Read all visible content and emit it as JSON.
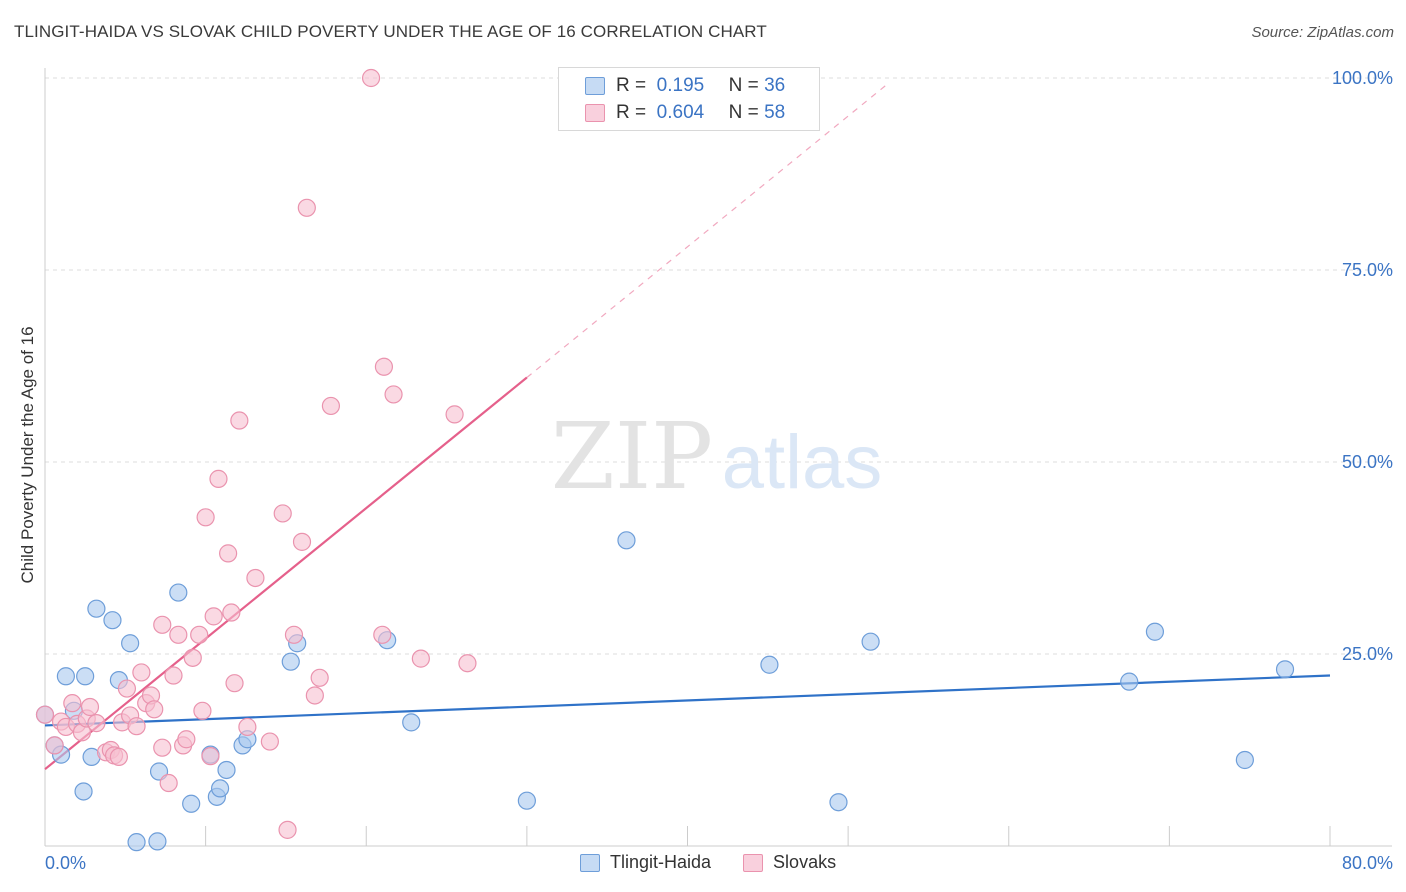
{
  "header": {
    "title": "TLINGIT-HAIDA VS SLOVAK CHILD POVERTY UNDER THE AGE OF 16 CORRELATION CHART",
    "source": "Source: ZipAtlas.com"
  },
  "watermark": {
    "zip": "ZIP",
    "atlas": "atlas"
  },
  "legend": {
    "r_label": "R =",
    "n_label": "N =",
    "series": [
      {
        "name": "Tlingit-Haida",
        "r": "0.195",
        "n": "36"
      },
      {
        "name": "Slovaks",
        "r": "0.604",
        "n": "58"
      }
    ]
  },
  "colors": {
    "blue_fill": "#a9c8ef",
    "blue_stroke": "#6e9ed9",
    "blue_line": "#2f72c8",
    "pink_fill": "#f7bfd0",
    "pink_stroke": "#ea93ae",
    "pink_line": "#e5608b",
    "axis_text": "#3b74c4",
    "grid": "#dcdcdc"
  },
  "chart_data": {
    "type": "scatter",
    "title": "TLINGIT-HAIDA VS SLOVAK CHILD POVERTY UNDER THE AGE OF 16 CORRELATION CHART",
    "xlabel": "",
    "ylabel": "Child Poverty Under the Age of 16",
    "xlim": [
      0,
      80
    ],
    "ylim": [
      0,
      100
    ],
    "x_tick_labels": [
      "0.0%",
      "80.0%"
    ],
    "y_ticks": [
      25,
      50,
      75,
      100
    ],
    "y_tick_labels": [
      "25.0%",
      "50.0%",
      "75.0%",
      "100.0%"
    ],
    "grid": true,
    "legend_position": "top-center",
    "series": [
      {
        "name": "Tlingit-Haida",
        "color": "#a9c8ef",
        "points": [
          [
            0.0,
            17.1
          ],
          [
            0.6,
            13.1
          ],
          [
            1.0,
            11.9
          ],
          [
            1.3,
            22.1
          ],
          [
            1.8,
            17.6
          ],
          [
            2.4,
            7.1
          ],
          [
            2.5,
            22.1
          ],
          [
            2.9,
            11.6
          ],
          [
            3.2,
            30.9
          ],
          [
            4.2,
            29.4
          ],
          [
            4.6,
            21.6
          ],
          [
            5.3,
            26.4
          ],
          [
            5.7,
            0.5
          ],
          [
            7.0,
            0.6
          ],
          [
            7.1,
            9.7
          ],
          [
            8.3,
            33.0
          ],
          [
            9.1,
            5.5
          ],
          [
            10.3,
            11.9
          ],
          [
            10.7,
            6.4
          ],
          [
            10.9,
            7.5
          ],
          [
            11.3,
            9.9
          ],
          [
            12.3,
            13.1
          ],
          [
            12.6,
            13.9
          ],
          [
            15.3,
            24.0
          ],
          [
            15.7,
            26.4
          ],
          [
            21.3,
            26.8
          ],
          [
            22.8,
            16.1
          ],
          [
            30.0,
            5.9
          ],
          [
            36.2,
            39.8
          ],
          [
            45.1,
            23.6
          ],
          [
            49.4,
            5.7
          ],
          [
            51.4,
            26.6
          ],
          [
            67.5,
            21.4
          ],
          [
            69.1,
            27.9
          ],
          [
            74.7,
            11.2
          ],
          [
            77.2,
            23.0
          ]
        ]
      },
      {
        "name": "Slovaks",
        "color": "#f7bfd0",
        "points": [
          [
            0.0,
            17.1
          ],
          [
            0.6,
            13.1
          ],
          [
            1.0,
            16.2
          ],
          [
            1.3,
            15.5
          ],
          [
            1.7,
            18.6
          ],
          [
            2.0,
            15.9
          ],
          [
            2.3,
            14.8
          ],
          [
            2.6,
            16.6
          ],
          [
            2.8,
            18.1
          ],
          [
            3.2,
            16.0
          ],
          [
            3.8,
            12.2
          ],
          [
            4.1,
            12.5
          ],
          [
            4.3,
            11.8
          ],
          [
            4.6,
            11.6
          ],
          [
            4.8,
            16.1
          ],
          [
            5.1,
            20.5
          ],
          [
            5.3,
            17.0
          ],
          [
            5.7,
            15.6
          ],
          [
            6.0,
            22.6
          ],
          [
            6.3,
            18.6
          ],
          [
            6.6,
            19.6
          ],
          [
            6.8,
            17.8
          ],
          [
            7.3,
            28.8
          ],
          [
            7.3,
            12.8
          ],
          [
            7.7,
            8.2
          ],
          [
            8.0,
            22.2
          ],
          [
            8.3,
            27.5
          ],
          [
            8.6,
            13.1
          ],
          [
            8.8,
            13.9
          ],
          [
            9.2,
            24.5
          ],
          [
            9.6,
            27.5
          ],
          [
            9.8,
            17.6
          ],
          [
            10.0,
            42.8
          ],
          [
            10.3,
            11.7
          ],
          [
            10.5,
            29.9
          ],
          [
            10.8,
            47.8
          ],
          [
            11.4,
            38.1
          ],
          [
            11.6,
            30.4
          ],
          [
            11.8,
            21.2
          ],
          [
            12.1,
            55.4
          ],
          [
            12.6,
            15.5
          ],
          [
            13.1,
            34.9
          ],
          [
            14.0,
            13.6
          ],
          [
            14.8,
            43.3
          ],
          [
            15.1,
            2.1
          ],
          [
            15.5,
            27.5
          ],
          [
            16.0,
            39.6
          ],
          [
            16.3,
            83.1
          ],
          [
            16.8,
            19.6
          ],
          [
            17.1,
            21.9
          ],
          [
            17.8,
            57.3
          ],
          [
            20.3,
            100.0
          ],
          [
            21.1,
            62.4
          ],
          [
            21.7,
            58.8
          ],
          [
            23.4,
            24.4
          ],
          [
            25.5,
            56.2
          ],
          [
            26.3,
            23.8
          ],
          [
            21.0,
            27.5
          ]
        ]
      }
    ],
    "trendlines": [
      {
        "series": "Tlingit-Haida",
        "x": [
          0,
          80
        ],
        "y": [
          15.7,
          22.2
        ],
        "style": "solid"
      },
      {
        "series": "Slovaks",
        "x": [
          0,
          30
        ],
        "y": [
          10.0,
          61.0
        ],
        "style": "solid"
      },
      {
        "series": "Slovaks",
        "x": [
          30,
          52.5
        ],
        "y": [
          61.0,
          99.3
        ],
        "style": "dashed"
      }
    ]
  }
}
